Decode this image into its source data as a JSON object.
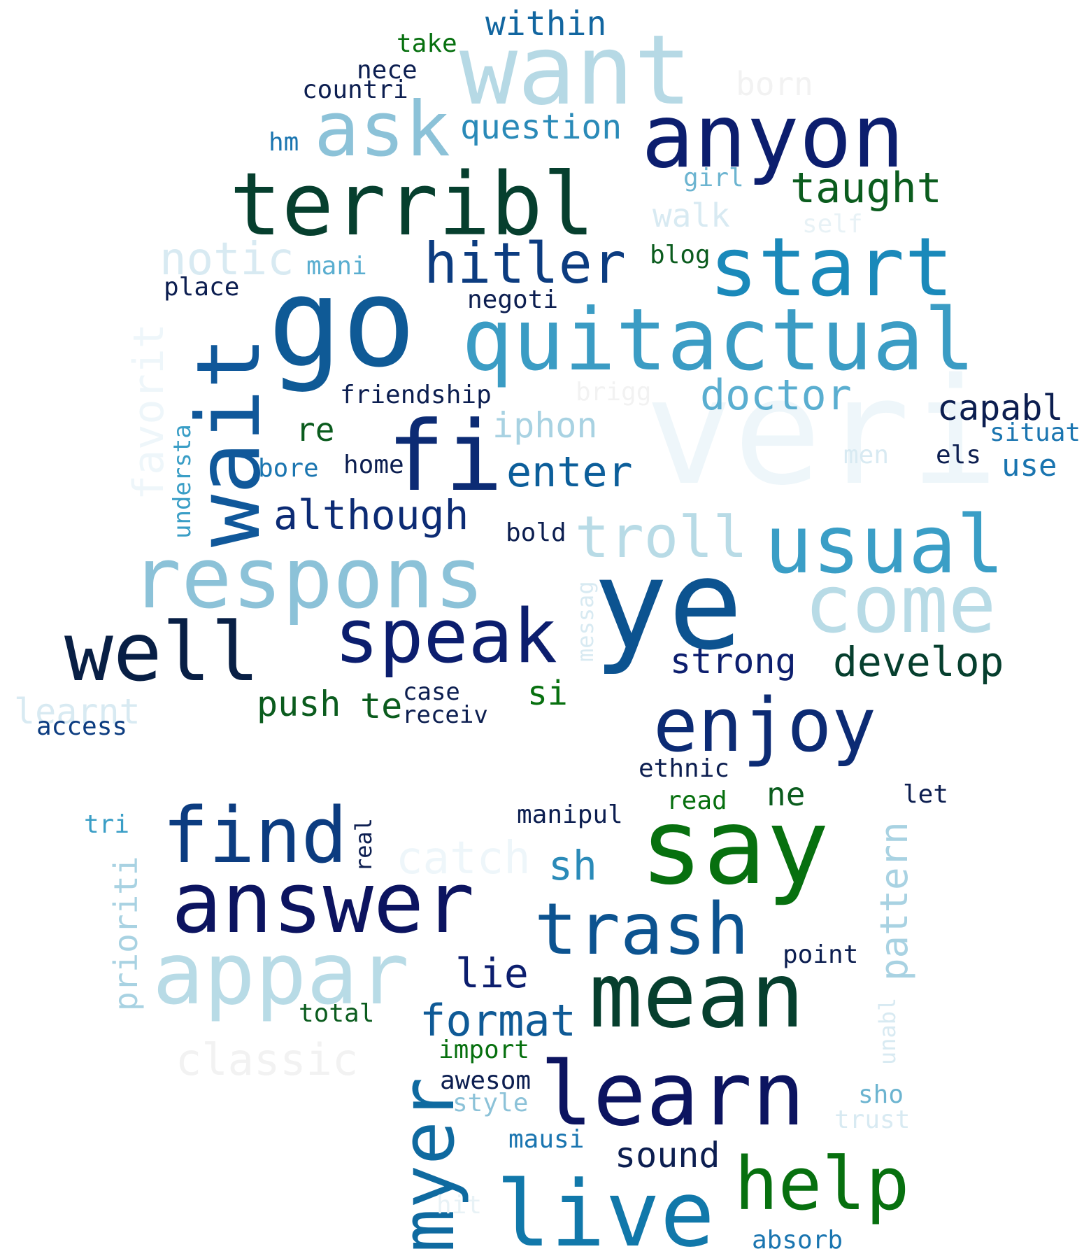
{
  "word_cloud": {
    "words": [
      {
        "text": "veri",
        "color": "#eef6fa"
      },
      {
        "text": "want",
        "color": "#b6d9e5"
      },
      {
        "text": "go",
        "color": "#0f5a96"
      },
      {
        "text": "terribl",
        "color": "#063f2e"
      },
      {
        "text": "anyon",
        "color": "#0c1e6e"
      },
      {
        "text": "start",
        "color": "#1a89ba"
      },
      {
        "text": "quitactual",
        "color": "#3b9cc4"
      },
      {
        "text": "ask",
        "color": "#8cc2d8"
      },
      {
        "text": "wait",
        "color": "#10589a"
      },
      {
        "text": "fi",
        "color": "#0c2b74"
      },
      {
        "text": "respons",
        "color": "#8cc2d8"
      },
      {
        "text": "ye",
        "color": "#0c5390"
      },
      {
        "text": "usual",
        "color": "#3a9ec6"
      },
      {
        "text": "come",
        "color": "#b8dbe6"
      },
      {
        "text": "well",
        "color": "#081f45"
      },
      {
        "text": "speak",
        "color": "#0c1e6e"
      },
      {
        "text": "enjoy",
        "color": "#0c2b74"
      },
      {
        "text": "say",
        "color": "#07700f"
      },
      {
        "text": "answer",
        "color": "#0c1460"
      },
      {
        "text": "find",
        "color": "#0c3c80"
      },
      {
        "text": "appar",
        "color": "#b8dbe6"
      },
      {
        "text": "mean",
        "color": "#063f2e"
      },
      {
        "text": "trash",
        "color": "#0c5390"
      },
      {
        "text": "learn",
        "color": "#0c1460"
      },
      {
        "text": "myer",
        "color": "#0f6aa0"
      },
      {
        "text": "live",
        "color": "#1178aa"
      },
      {
        "text": "help",
        "color": "#07700f"
      },
      {
        "text": "hitler",
        "color": "#0c3c80"
      },
      {
        "text": "troll",
        "color": "#b8dbe6"
      },
      {
        "text": "within",
        "color": "#1266a0"
      },
      {
        "text": "question",
        "color": "#2a8ab8"
      },
      {
        "text": "taught",
        "color": "#0b5c1e"
      },
      {
        "text": "notic",
        "color": "#d8eaf2"
      },
      {
        "text": "doctor",
        "color": "#5aaed0"
      },
      {
        "text": "capabl",
        "color": "#0c1e50"
      },
      {
        "text": "iphon",
        "color": "#a8d2e2"
      },
      {
        "text": "enter",
        "color": "#0c5e9a"
      },
      {
        "text": "although",
        "color": "#0c2b74"
      },
      {
        "text": "develop",
        "color": "#063f2e"
      },
      {
        "text": "strong",
        "color": "#0c1e6e"
      },
      {
        "text": "push",
        "color": "#0b5c1e"
      },
      {
        "text": "te",
        "color": "#0b5c1e"
      },
      {
        "text": "si",
        "color": "#07700f"
      },
      {
        "text": "format",
        "color": "#0f5a96"
      },
      {
        "text": "lie",
        "color": "#0c1e6e"
      },
      {
        "text": "sound",
        "color": "#0c1e50"
      },
      {
        "text": "pattern",
        "color": "#a8d2e2"
      },
      {
        "text": "prioriti",
        "color": "#a8d2e2"
      },
      {
        "text": "catch",
        "color": "#eef6fa"
      },
      {
        "text": "classic",
        "color": "#f2f2f2"
      },
      {
        "text": "sh",
        "color": "#2a8ab8"
      },
      {
        "text": "learnt",
        "color": "#d8eaf2"
      },
      {
        "text": "walk",
        "color": "#d8eaf2"
      },
      {
        "text": "favorit",
        "color": "#eef6fa"
      },
      {
        "text": "re",
        "color": "#0b5c1e"
      },
      {
        "text": "use",
        "color": "#1a75b0"
      },
      {
        "text": "take",
        "color": "#07700f"
      },
      {
        "text": "nece",
        "color": "#0c1e50"
      },
      {
        "text": "countri",
        "color": "#0c1e50"
      },
      {
        "text": "born",
        "color": "#f2f2f2"
      },
      {
        "text": "hm",
        "color": "#1a75b0"
      },
      {
        "text": "girl",
        "color": "#6cb4d0"
      },
      {
        "text": "self",
        "color": "#e8f2f6"
      },
      {
        "text": "blog",
        "color": "#0b5c1e"
      },
      {
        "text": "mani",
        "color": "#5aaed0"
      },
      {
        "text": "place",
        "color": "#0c1e50"
      },
      {
        "text": "negoti",
        "color": "#0c1e50"
      },
      {
        "text": "friendship",
        "color": "#0c1e50"
      },
      {
        "text": "brigg",
        "color": "#f2f2f2"
      },
      {
        "text": "situat",
        "color": "#1a75b0"
      },
      {
        "text": "men",
        "color": "#d8eaf2"
      },
      {
        "text": "els",
        "color": "#0c1e50"
      },
      {
        "text": "understa",
        "color": "#3a9ec6"
      },
      {
        "text": "bore",
        "color": "#1a75b0"
      },
      {
        "text": "home",
        "color": "#0c1e50"
      },
      {
        "text": "bold",
        "color": "#0c1e50"
      },
      {
        "text": "messag",
        "color": "#d8eaf2"
      },
      {
        "text": "case",
        "color": "#0c1e50"
      },
      {
        "text": "receiv",
        "color": "#0c1e50"
      },
      {
        "text": "access",
        "color": "#0c3c80"
      },
      {
        "text": "ethnic",
        "color": "#0c1e50"
      },
      {
        "text": "ne",
        "color": "#0b5c1e"
      },
      {
        "text": "read",
        "color": "#07700f"
      },
      {
        "text": "let",
        "color": "#0c1e50"
      },
      {
        "text": "tri",
        "color": "#3a9ec6"
      },
      {
        "text": "real",
        "color": "#0c1e50"
      },
      {
        "text": "manipul",
        "color": "#0c1e50"
      },
      {
        "text": "point",
        "color": "#0c1e50"
      },
      {
        "text": "unabl",
        "color": "#d8eaf2"
      },
      {
        "text": "total",
        "color": "#0b5c1e"
      },
      {
        "text": "import",
        "color": "#07700f"
      },
      {
        "text": "awesom",
        "color": "#0c1e50"
      },
      {
        "text": "style",
        "color": "#8cc2d8"
      },
      {
        "text": "mausi",
        "color": "#1a75b0"
      },
      {
        "text": "sho",
        "color": "#6cb4d0"
      },
      {
        "text": "trust",
        "color": "#d8eaf2"
      },
      {
        "text": "hit",
        "color": "#e8f2f6"
      },
      {
        "text": "absorb",
        "color": "#1a75b0"
      }
    ]
  }
}
